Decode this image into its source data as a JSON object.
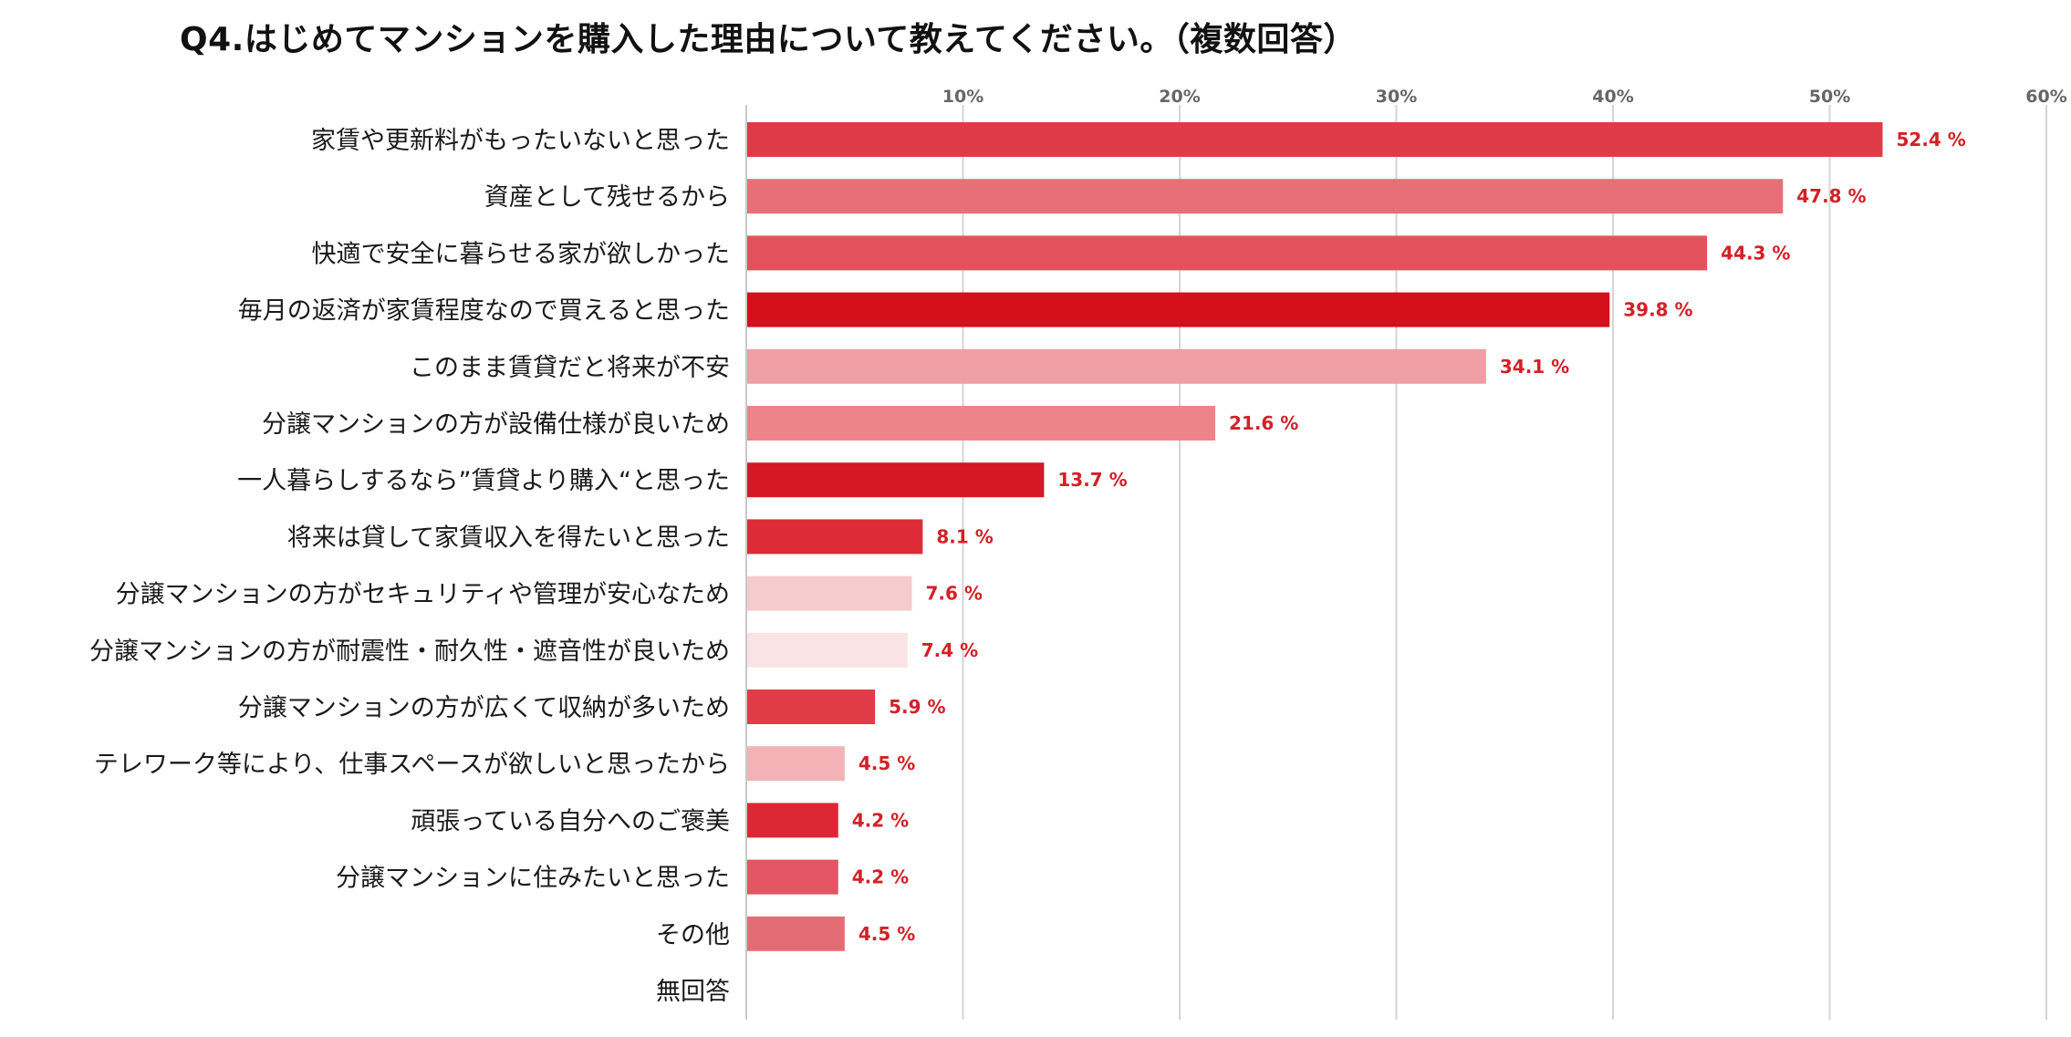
{
  "chart_data": {
    "type": "bar",
    "orientation": "horizontal",
    "title": "Q4.はじめてマンションを購入した理由について教えてください。（複数回答）",
    "unit": "%",
    "xlim": [
      0,
      60
    ],
    "ticks": [
      10,
      20,
      30,
      40,
      50,
      60
    ],
    "tick_suffix": "%",
    "grid": true,
    "categories": [
      "家賃や更新料がもったいないと思った",
      "資産として残せるから",
      "快適で安全に暮らせる家が欲しかった",
      "毎月の返済が家賃程度なので買えると思った",
      "このまま賃貸だと将来が不安",
      "分譲マンションの方が設備仕様が良いため",
      "一人暮らしするなら”賃貸より購入“と思った",
      "将来は貸して家賃収入を得たいと思った",
      "分譲マンションの方がセキュリティや管理が安心なため",
      "分譲マンションの方が耐震性・耐久性・遮音性が良いため",
      "分譲マンションの方が広くて収納が多いため",
      "テレワーク等により、仕事スペースが欲しいと思ったから",
      "頑張っている自分へのご褒美",
      "分譲マンションに住みたいと思った",
      "その他",
      "無回答"
    ],
    "values": [
      52.4,
      47.8,
      44.3,
      39.8,
      34.1,
      21.6,
      13.7,
      8.1,
      7.6,
      7.4,
      5.9,
      4.5,
      4.2,
      4.2,
      4.5,
      0
    ],
    "value_labels": [
      "52.4 %",
      "47.8 %",
      "44.3 %",
      "39.8 %",
      "34.1 %",
      "21.6 %",
      "13.7 %",
      "8.1 %",
      "7.6 %",
      "7.4 %",
      "5.9 %",
      "4.5 %",
      "4.2 %",
      "4.2 %",
      "4.5 %",
      ""
    ],
    "colors": [
      "#df3a48",
      "#e86f77",
      "#e2525c",
      "#d50f1b",
      "#ef9ea3",
      "#ec848a",
      "#d61724",
      "#de2b38",
      "#f6cbce",
      "#fae3e5",
      "#e03b47",
      "#f2b2b6",
      "#de2734",
      "#e35562",
      "#e46d75",
      "#ffffff"
    ],
    "value_color": "#d42027"
  }
}
